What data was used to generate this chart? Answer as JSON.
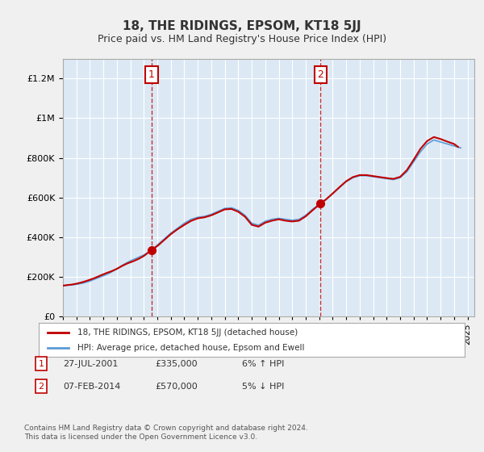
{
  "title": "18, THE RIDINGS, EPSOM, KT18 5JJ",
  "subtitle": "Price paid vs. HM Land Registry's House Price Index (HPI)",
  "ylabel_ticks": [
    "£0",
    "£200K",
    "£400K",
    "£600K",
    "£800K",
    "£1M",
    "£1.2M"
  ],
  "ylim": [
    0,
    1300000
  ],
  "xlim_start": 1995,
  "xlim_end": 2025.5,
  "background_color": "#dce9f5",
  "plot_bg_color": "#dce9f5",
  "grid_color": "#ffffff",
  "hpi_color": "#5b9bd5",
  "price_color": "#c00000",
  "transaction1_x": 2001.57,
  "transaction1_y": 335000,
  "transaction1_label": "1",
  "transaction2_x": 2014.1,
  "transaction2_y": 570000,
  "transaction2_label": "2",
  "legend_price_label": "18, THE RIDINGS, EPSOM, KT18 5JJ (detached house)",
  "legend_hpi_label": "HPI: Average price, detached house, Epsom and Ewell",
  "footnote1_row1": "1    27-JUL-2001         £335,000          6% ↑ HPI",
  "footnote1_row2": "2    07-FEB-2014         £570,000          5% ↓ HPI",
  "footer_text": "Contains HM Land Registry data © Crown copyright and database right 2024.\nThis data is licensed under the Open Government Licence v3.0.",
  "hpi_data_x": [
    1995.0,
    1995.5,
    1996.0,
    1996.5,
    1997.0,
    1997.5,
    1998.0,
    1998.5,
    1999.0,
    1999.5,
    2000.0,
    2000.5,
    2001.0,
    2001.5,
    2002.0,
    2002.5,
    2003.0,
    2003.5,
    2004.0,
    2004.5,
    2005.0,
    2005.5,
    2006.0,
    2006.5,
    2007.0,
    2007.5,
    2008.0,
    2008.5,
    2009.0,
    2009.5,
    2010.0,
    2010.5,
    2011.0,
    2011.5,
    2012.0,
    2012.5,
    2013.0,
    2013.5,
    2014.0,
    2014.5,
    2015.0,
    2015.5,
    2016.0,
    2016.5,
    2017.0,
    2017.5,
    2018.0,
    2018.5,
    2019.0,
    2019.5,
    2020.0,
    2020.5,
    2021.0,
    2021.5,
    2022.0,
    2022.5,
    2023.0,
    2023.5,
    2024.0,
    2024.5
  ],
  "hpi_data_y": [
    155000,
    158000,
    162000,
    168000,
    178000,
    192000,
    205000,
    220000,
    240000,
    262000,
    280000,
    295000,
    310000,
    330000,
    360000,
    390000,
    420000,
    445000,
    470000,
    490000,
    500000,
    505000,
    515000,
    530000,
    545000,
    548000,
    535000,
    510000,
    470000,
    460000,
    480000,
    490000,
    495000,
    490000,
    485000,
    490000,
    510000,
    540000,
    565000,
    590000,
    620000,
    650000,
    680000,
    700000,
    710000,
    710000,
    705000,
    700000,
    695000,
    690000,
    700000,
    730000,
    780000,
    830000,
    870000,
    890000,
    880000,
    870000,
    860000,
    850000
  ],
  "price_data_x": [
    1995.0,
    1995.3,
    1995.6,
    1996.0,
    1996.3,
    1996.7,
    1997.0,
    1997.4,
    1997.8,
    1998.2,
    1998.6,
    1999.0,
    1999.4,
    1999.8,
    2000.2,
    2000.6,
    2001.0,
    2001.57,
    2002.0,
    2002.5,
    2003.0,
    2003.5,
    2004.0,
    2004.5,
    2005.0,
    2005.5,
    2006.0,
    2006.5,
    2007.0,
    2007.5,
    2008.0,
    2008.5,
    2009.0,
    2009.5,
    2010.0,
    2010.5,
    2011.0,
    2011.5,
    2012.0,
    2012.5,
    2013.0,
    2013.5,
    2014.1,
    2014.5,
    2015.0,
    2015.5,
    2016.0,
    2016.5,
    2017.0,
    2017.5,
    2018.0,
    2018.5,
    2019.0,
    2019.5,
    2020.0,
    2020.5,
    2021.0,
    2021.5,
    2022.0,
    2022.5,
    2023.0,
    2023.5,
    2024.0,
    2024.3
  ],
  "price_data_y": [
    155000,
    158000,
    160000,
    165000,
    170000,
    178000,
    185000,
    195000,
    207000,
    218000,
    228000,
    240000,
    255000,
    268000,
    278000,
    290000,
    305000,
    335000,
    355000,
    385000,
    415000,
    440000,
    462000,
    482000,
    495000,
    500000,
    510000,
    525000,
    540000,
    542000,
    528000,
    503000,
    462000,
    453000,
    473000,
    483000,
    490000,
    483000,
    479000,
    483000,
    505000,
    535000,
    570000,
    590000,
    620000,
    652000,
    682000,
    703000,
    713000,
    713000,
    708000,
    703000,
    698000,
    694000,
    704000,
    738000,
    790000,
    845000,
    885000,
    905000,
    895000,
    882000,
    870000,
    855000
  ]
}
